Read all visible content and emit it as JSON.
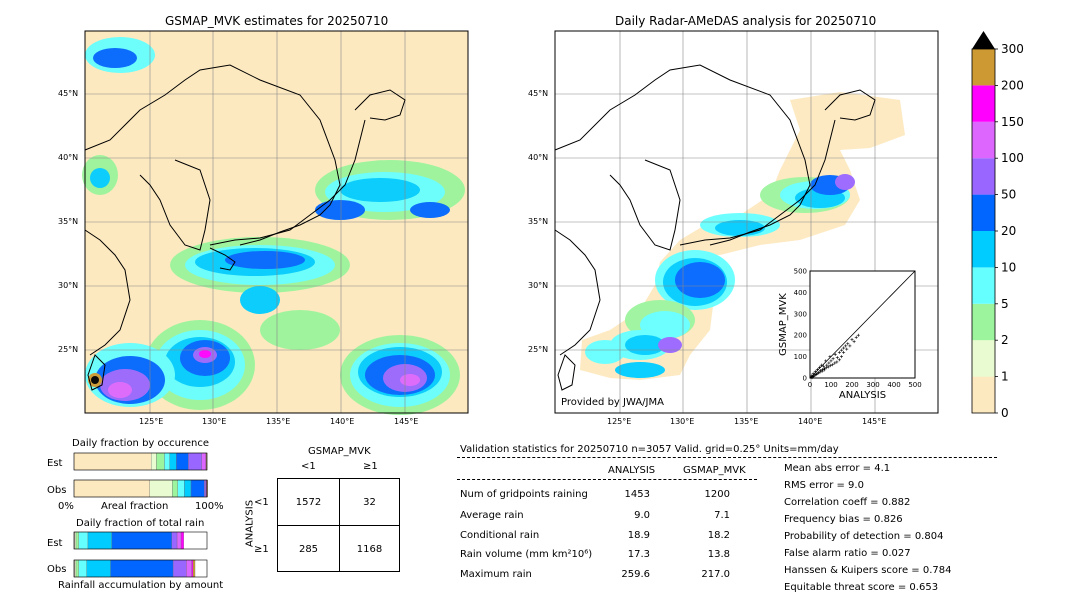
{
  "left_map": {
    "title": "GSMAP_MVK estimates for 20250710",
    "lat_labels": [
      "45°N",
      "40°N",
      "35°N",
      "30°N",
      "25°N"
    ],
    "lon_labels": [
      "125°E",
      "130°E",
      "135°E",
      "140°E",
      "145°E"
    ]
  },
  "right_map": {
    "title": "Daily Radar-AMeDAS analysis for 20250710",
    "lat_labels": [
      "45°N",
      "40°N",
      "35°N",
      "30°N",
      "25°N"
    ],
    "lon_labels": [
      "125°E",
      "130°E",
      "135°E",
      "140°E",
      "145°E"
    ],
    "credit": "Provided by JWA/JMA"
  },
  "colorbar": {
    "ticks": [
      "300",
      "200",
      "150",
      "100",
      "50",
      "20",
      "10",
      "5",
      "2",
      "1",
      "0"
    ],
    "colors": [
      "#fde9c0",
      "#e9fbd0",
      "#9cf49c",
      "#66ffff",
      "#00ccff",
      "#0066ff",
      "#9966ff",
      "#dd66ff",
      "#ff00ff",
      "#cc9933"
    ]
  },
  "chart_data": [
    {
      "type": "scatter",
      "title": "",
      "xlabel": "ANALYSIS",
      "ylabel": "GSMAP_MVK",
      "xlim": [
        0,
        500
      ],
      "ylim": [
        0,
        500
      ],
      "x_ticks": [
        "0",
        "100",
        "200",
        "300",
        "400",
        "500"
      ],
      "y_ticks": [
        "0",
        "100",
        "200",
        "300",
        "400",
        "500"
      ],
      "points": [
        [
          5,
          3
        ],
        [
          8,
          10
        ],
        [
          12,
          6
        ],
        [
          15,
          20
        ],
        [
          20,
          12
        ],
        [
          25,
          30
        ],
        [
          30,
          18
        ],
        [
          35,
          40
        ],
        [
          40,
          25
        ],
        [
          45,
          50
        ],
        [
          50,
          35
        ],
        [
          55,
          60
        ],
        [
          60,
          40
        ],
        [
          65,
          55
        ],
        [
          70,
          45
        ],
        [
          75,
          80
        ],
        [
          80,
          60
        ],
        [
          90,
          70
        ],
        [
          95,
          100
        ],
        [
          100,
          80
        ],
        [
          110,
          90
        ],
        [
          120,
          110
        ],
        [
          130,
          95
        ],
        [
          140,
          120
        ],
        [
          150,
          130
        ],
        [
          160,
          140
        ],
        [
          170,
          150
        ],
        [
          180,
          160
        ],
        [
          200,
          180
        ],
        [
          220,
          190
        ],
        [
          10,
          2
        ],
        [
          18,
          8
        ],
        [
          28,
          15
        ],
        [
          38,
          22
        ],
        [
          48,
          28
        ],
        [
          58,
          32
        ],
        [
          68,
          38
        ],
        [
          78,
          48
        ],
        [
          88,
          52
        ],
        [
          98,
          58
        ],
        [
          108,
          62
        ],
        [
          118,
          70
        ],
        [
          128,
          75
        ],
        [
          140,
          85
        ],
        [
          150,
          100
        ],
        [
          160,
          120
        ],
        [
          175,
          135
        ],
        [
          190,
          150
        ],
        [
          210,
          170
        ],
        [
          230,
          200
        ]
      ]
    },
    {
      "type": "bar",
      "title": "Daily fraction by occurence",
      "categories": [
        "Est",
        "Obs"
      ],
      "xlabel": "Areal fraction",
      "x_ticks": [
        "0%",
        "100%"
      ],
      "series": [
        {
          "values": [
            0.58,
            0.57
          ]
        },
        {
          "values": [
            0.04,
            0.17
          ]
        },
        {
          "values": [
            0.06,
            0.04
          ]
        },
        {
          "values": [
            0.04,
            0.05
          ]
        },
        {
          "values": [
            0.05,
            0.05
          ]
        },
        {
          "values": [
            0.09,
            0.1
          ]
        },
        {
          "values": [
            0.1,
            0.01
          ]
        },
        {
          "values": [
            0.03,
            0.005
          ]
        },
        {
          "values": [
            0.005,
            0.005
          ]
        },
        {
          "values": [
            0.005,
            0.005
          ]
        }
      ]
    },
    {
      "type": "bar",
      "title": "Daily fraction of total rain",
      "categories": [
        "Est",
        "Obs"
      ],
      "xlabel": "Rainfall accumulation by amount",
      "series": [
        {
          "values": [
            0.005,
            0.005
          ]
        },
        {
          "values": [
            0.01,
            0.01
          ]
        },
        {
          "values": [
            0.02,
            0.02
          ]
        },
        {
          "values": [
            0.07,
            0.06
          ]
        },
        {
          "values": [
            0.18,
            0.18
          ]
        },
        {
          "values": [
            0.45,
            0.47
          ]
        },
        {
          "values": [
            0.04,
            0.1
          ]
        },
        {
          "values": [
            0.03,
            0.04
          ]
        },
        {
          "values": [
            0.02,
            0.01
          ]
        },
        {
          "values": [
            0.0,
            0.015
          ]
        }
      ]
    }
  ],
  "contingency": {
    "header": "GSMAP_MVK",
    "col_labels": [
      "<1",
      "≥1"
    ],
    "row_axis": "ANALYSIS",
    "row_labels": [
      "<1",
      "≥1"
    ],
    "cells": [
      [
        "1572",
        "32"
      ],
      [
        "285",
        "1168"
      ]
    ]
  },
  "validation": {
    "title": "Validation statistics for 20250710  n=3057 Valid. grid=0.25° Units=mm/day",
    "col_analysis": "ANALYSIS",
    "col_gsmap": "GSMAP_MVK",
    "rows": [
      {
        "label": "Num of gridpoints raining",
        "analysis": "1453",
        "gsmap": "1200"
      },
      {
        "label": "Average rain",
        "analysis": "9.0",
        "gsmap": "7.1"
      },
      {
        "label": "Conditional rain",
        "analysis": "18.9",
        "gsmap": "18.2"
      },
      {
        "label": "Rain volume (mm km²10⁶)",
        "analysis": "17.3",
        "gsmap": "13.8"
      },
      {
        "label": "Maximum rain",
        "analysis": "259.6",
        "gsmap": "217.0"
      }
    ],
    "scores": [
      "Mean abs error =    4.1",
      "RMS error =    9.0",
      "Correlation coeff =  0.882",
      "Frequency bias =  0.826",
      "Probability of detection =  0.804",
      "False alarm ratio =  0.027",
      "Hanssen & Kuipers score =  0.784",
      "Equitable threat score =  0.653"
    ]
  }
}
